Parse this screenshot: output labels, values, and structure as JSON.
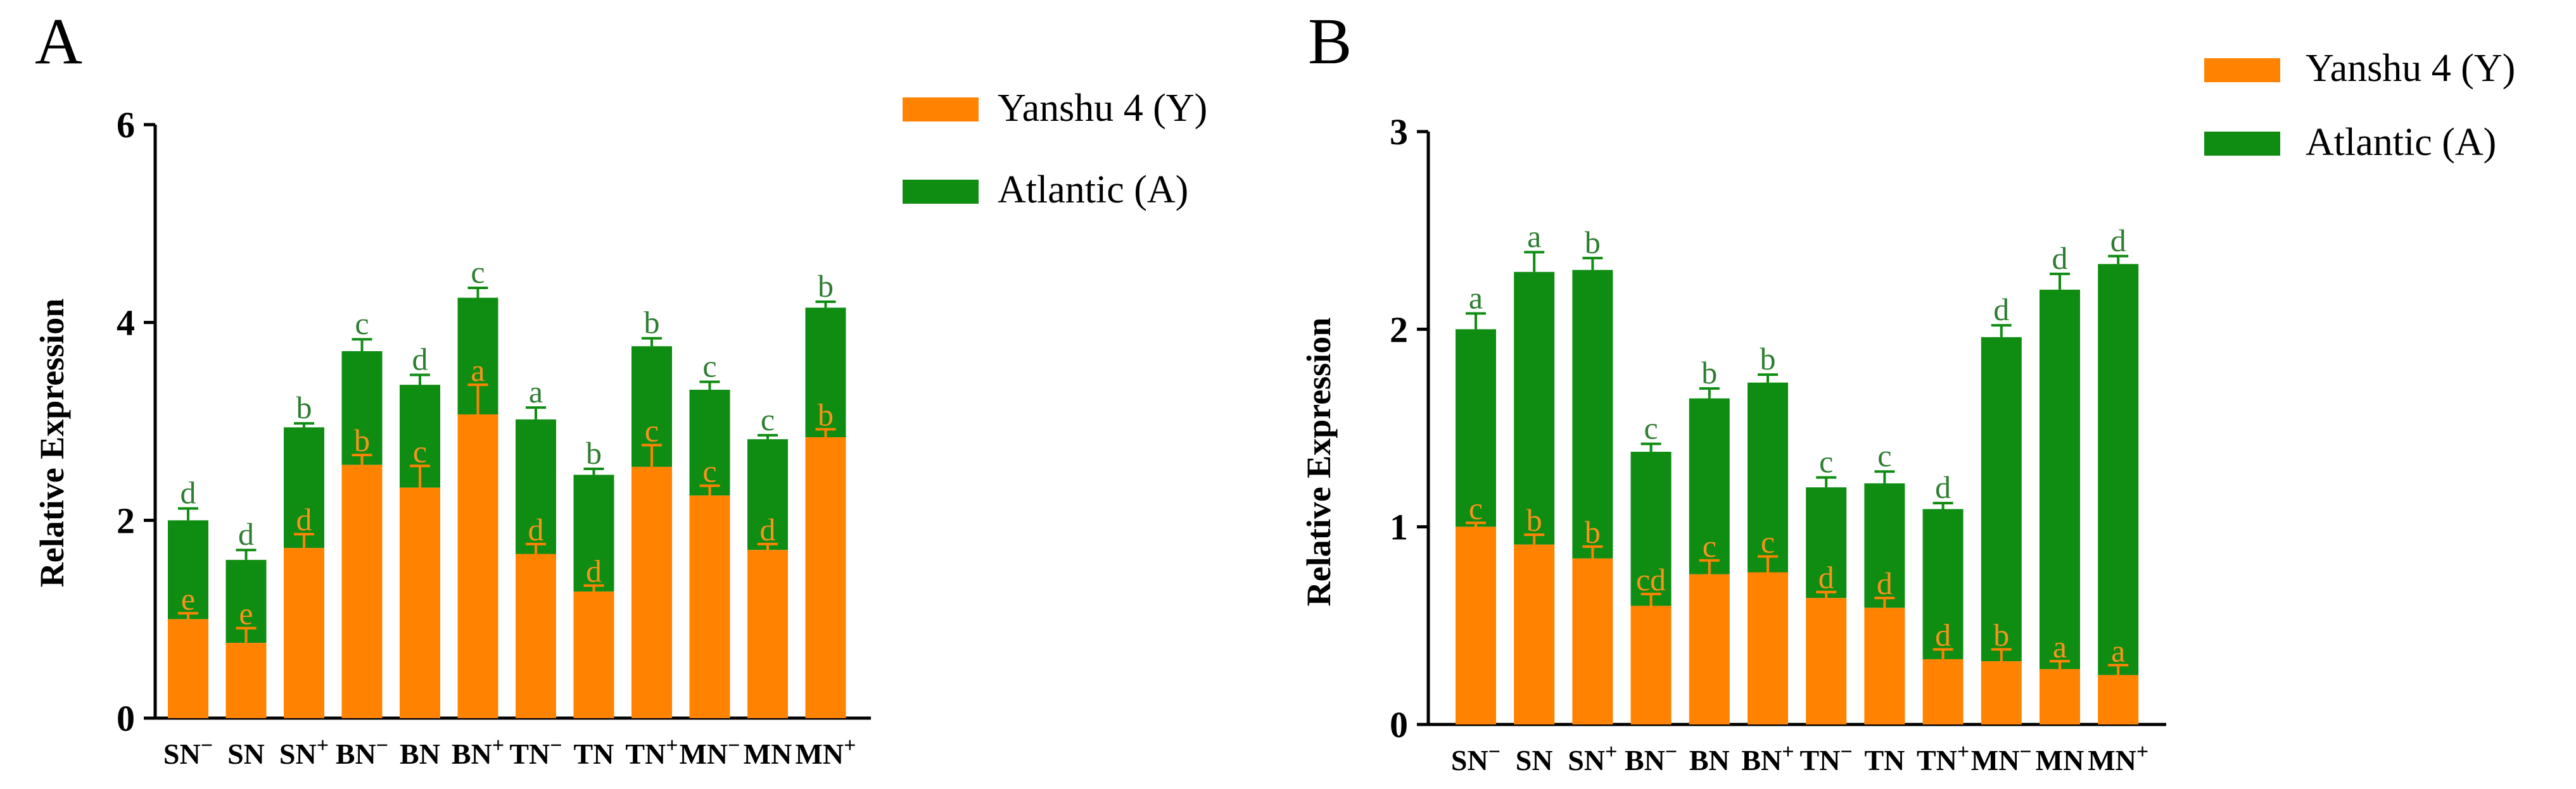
{
  "colors": {
    "yanshu": "#ff8300",
    "atlantic": "#0f8c12",
    "letter_yanshu": "#f7941d",
    "letter_atlantic": "#2e7d32",
    "axis": "#000000"
  },
  "chart_data": [
    {
      "panel": "A",
      "type": "bar",
      "stacked": true,
      "ylabel": "Relative Expression",
      "ylim": [
        0,
        6
      ],
      "yticks": [
        "0",
        "2",
        "4",
        "6"
      ],
      "legend": {
        "position": "top-right",
        "entries": [
          "Yanshu 4 (Y)",
          "Atlantic (A)"
        ]
      },
      "categories": [
        {
          "base": "SN",
          "sup": "−"
        },
        {
          "base": "SN",
          "sup": ""
        },
        {
          "base": "SN",
          "sup": "+"
        },
        {
          "base": "BN",
          "sup": "−"
        },
        {
          "base": "BN",
          "sup": ""
        },
        {
          "base": "BN",
          "sup": "+"
        },
        {
          "base": "TN",
          "sup": "−"
        },
        {
          "base": "TN",
          "sup": ""
        },
        {
          "base": "TN",
          "sup": "+"
        },
        {
          "base": "MN",
          "sup": "−"
        },
        {
          "base": "MN",
          "sup": ""
        },
        {
          "base": "MN",
          "sup": "+"
        }
      ],
      "series": [
        {
          "name": "Yanshu 4 (Y)",
          "values": [
            1.0,
            0.76,
            1.72,
            2.56,
            2.33,
            3.07,
            1.66,
            1.28,
            2.54,
            2.25,
            1.7,
            2.84
          ],
          "errors": [
            0.06,
            0.15,
            0.14,
            0.1,
            0.22,
            0.3,
            0.1,
            0.06,
            0.22,
            0.1,
            0.06,
            0.08
          ],
          "letters": [
            "e",
            "e",
            "d",
            "b",
            "c",
            "a",
            "d",
            "d",
            "c",
            "c",
            "d",
            "b"
          ]
        },
        {
          "name": "Atlantic (A)",
          "values": [
            1.0,
            0.84,
            1.22,
            1.15,
            1.04,
            1.18,
            1.36,
            1.18,
            1.22,
            1.07,
            1.12,
            1.31
          ],
          "totals": [
            2.0,
            1.6,
            2.94,
            3.71,
            3.37,
            4.25,
            3.02,
            2.46,
            3.76,
            3.32,
            2.82,
            4.15
          ],
          "errors": [
            0.12,
            0.1,
            0.04,
            0.12,
            0.1,
            0.1,
            0.12,
            0.06,
            0.08,
            0.08,
            0.04,
            0.06
          ],
          "letters": [
            "d",
            "d",
            "b",
            "c",
            "d",
            "c",
            "a",
            "b",
            "b",
            "c",
            "c",
            "b"
          ]
        }
      ]
    },
    {
      "panel": "B",
      "type": "bar",
      "stacked": true,
      "ylabel": "Relative Expression",
      "ylim": [
        0,
        3
      ],
      "yticks": [
        "0",
        "1",
        "2",
        "3"
      ],
      "legend": {
        "position": "top-right",
        "entries": [
          "Yanshu 4 (Y)",
          "Atlantic (A)"
        ]
      },
      "categories": [
        {
          "base": "SN",
          "sup": "−"
        },
        {
          "base": "SN",
          "sup": ""
        },
        {
          "base": "SN",
          "sup": "+"
        },
        {
          "base": "BN",
          "sup": "−"
        },
        {
          "base": "BN",
          "sup": ""
        },
        {
          "base": "BN",
          "sup": "+"
        },
        {
          "base": "TN",
          "sup": "−"
        },
        {
          "base": "TN",
          "sup": ""
        },
        {
          "base": "TN",
          "sup": "+"
        },
        {
          "base": "MN",
          "sup": "−"
        },
        {
          "base": "MN",
          "sup": ""
        },
        {
          "base": "MN",
          "sup": "+"
        }
      ],
      "series": [
        {
          "name": "Yanshu 4 (Y)",
          "values": [
            1.0,
            0.91,
            0.84,
            0.6,
            0.76,
            0.77,
            0.64,
            0.59,
            0.33,
            0.32,
            0.28,
            0.25
          ],
          "errors": [
            0.02,
            0.05,
            0.06,
            0.06,
            0.07,
            0.08,
            0.03,
            0.05,
            0.05,
            0.06,
            0.04,
            0.05
          ],
          "letters": [
            "c",
            "b",
            "b",
            "cd",
            "c",
            "c",
            "d",
            "d",
            "d",
            "b",
            "a",
            "a"
          ]
        },
        {
          "name": "Atlantic (A)",
          "values": [
            1.0,
            1.38,
            1.46,
            0.78,
            0.89,
            0.96,
            0.56,
            0.63,
            0.76,
            1.64,
            1.92,
            2.08
          ],
          "totals": [
            2.0,
            2.29,
            2.3,
            1.38,
            1.65,
            1.73,
            1.2,
            1.22,
            1.09,
            1.96,
            2.2,
            2.33
          ],
          "errors": [
            0.08,
            0.1,
            0.06,
            0.04,
            0.05,
            0.04,
            0.05,
            0.06,
            0.03,
            0.06,
            0.08,
            0.04
          ],
          "letters": [
            "a",
            "a",
            "b",
            "c",
            "b",
            "b",
            "c",
            "c",
            "d",
            "d",
            "d",
            "d"
          ]
        }
      ]
    }
  ]
}
